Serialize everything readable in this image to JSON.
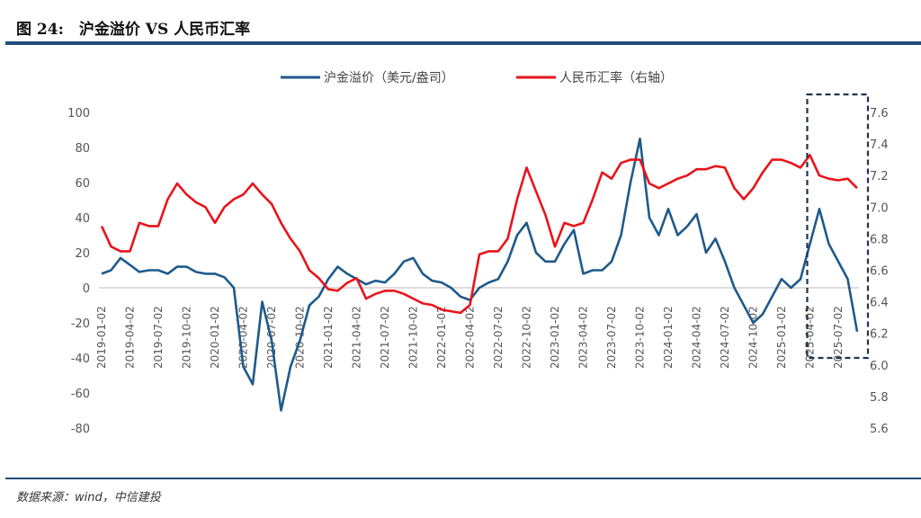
{
  "header": {
    "title": "图 24:　沪金溢价 VS 人民币汇率"
  },
  "footer": {
    "source": "数据来源：wind，中信建投"
  },
  "chart_data": {
    "type": "line",
    "title": "图 24:　沪金溢价 VS 人民币汇率",
    "legend_position": "top",
    "grid": "zero line only",
    "x_tick_labels": [
      "2019-01-02",
      "2019-04-02",
      "2019-07-02",
      "2019-10-02",
      "2020-01-02",
      "2020-04-02",
      "2020-07-02",
      "2020-10-02",
      "2021-01-02",
      "2021-04-02",
      "2021-07-02",
      "2021-10-02",
      "2022-01-02",
      "2022-04-02",
      "2022-07-02",
      "2022-10-02",
      "2023-01-02",
      "2023-04-02",
      "2023-07-02",
      "2023-10-02",
      "2024-01-02",
      "2024-04-02",
      "2024-07-02",
      "2024-10-02",
      "2025-01-02",
      "2025-04-02",
      "2025-07-02"
    ],
    "y_left": {
      "min": -80,
      "max": 100,
      "step": 20,
      "ticks": [
        "100",
        "80",
        "60",
        "40",
        "20",
        "0",
        "-20",
        "-40",
        "-60",
        "-80"
      ]
    },
    "y_right": {
      "min": 5.6,
      "max": 7.6,
      "step": 0.2,
      "ticks": [
        "7.6",
        "7.4",
        "7.2",
        "7.0",
        "6.8",
        "6.6",
        "6.4",
        "6.2",
        "6.0",
        "5.8",
        "5.6"
      ]
    },
    "x": [
      "2019-01",
      "2019-02",
      "2019-03",
      "2019-04",
      "2019-05",
      "2019-06",
      "2019-07",
      "2019-08",
      "2019-09",
      "2019-10",
      "2019-11",
      "2019-12",
      "2020-01",
      "2020-02",
      "2020-03",
      "2020-04",
      "2020-05",
      "2020-06",
      "2020-07",
      "2020-08",
      "2020-09",
      "2020-10",
      "2020-11",
      "2020-12",
      "2021-01",
      "2021-02",
      "2021-03",
      "2021-04",
      "2021-05",
      "2021-06",
      "2021-07",
      "2021-08",
      "2021-09",
      "2021-10",
      "2021-11",
      "2021-12",
      "2022-01",
      "2022-02",
      "2022-03",
      "2022-04",
      "2022-05",
      "2022-06",
      "2022-07",
      "2022-08",
      "2022-09",
      "2022-10",
      "2022-11",
      "2022-12",
      "2023-01",
      "2023-02",
      "2023-03",
      "2023-04",
      "2023-05",
      "2023-06",
      "2023-07",
      "2023-08",
      "2023-09",
      "2023-10",
      "2023-11",
      "2023-12",
      "2024-01",
      "2024-02",
      "2024-03",
      "2024-04",
      "2024-05",
      "2024-06",
      "2024-07",
      "2024-08",
      "2024-09",
      "2024-10",
      "2024-11",
      "2024-12",
      "2025-01",
      "2025-02",
      "2025-03",
      "2025-04",
      "2025-05",
      "2025-06",
      "2025-07",
      "2025-08",
      "2025-09"
    ],
    "series": [
      {
        "name": "沪金溢价（美元/盎司）",
        "axis": "left",
        "color": "#1f5a8a",
        "values": [
          8,
          10,
          17,
          13,
          9,
          10,
          10,
          8,
          12,
          12,
          9,
          8,
          8,
          6,
          0,
          -45,
          -55,
          -8,
          -30,
          -70,
          -45,
          -30,
          -10,
          -5,
          5,
          12,
          8,
          5,
          2,
          4,
          3,
          8,
          15,
          17,
          8,
          4,
          3,
          0,
          -5,
          -7,
          0,
          3,
          5,
          15,
          30,
          37,
          20,
          15,
          15,
          25,
          33,
          8,
          10,
          10,
          15,
          30,
          60,
          85,
          40,
          30,
          45,
          30,
          35,
          42,
          20,
          28,
          15,
          0,
          -10,
          -20,
          -15,
          -5,
          5,
          0,
          5,
          25,
          45,
          25,
          15,
          5,
          -25
        ]
      },
      {
        "name": "人民币汇率（右轴）",
        "axis": "right",
        "color": "#e8141b",
        "values": [
          6.88,
          6.75,
          6.72,
          6.72,
          6.9,
          6.88,
          6.88,
          7.05,
          7.15,
          7.08,
          7.03,
          7.0,
          6.9,
          7.0,
          7.05,
          7.08,
          7.15,
          7.08,
          7.02,
          6.9,
          6.8,
          6.72,
          6.6,
          6.55,
          6.48,
          6.47,
          6.52,
          6.55,
          6.42,
          6.45,
          6.47,
          6.47,
          6.45,
          6.42,
          6.39,
          6.38,
          6.35,
          6.34,
          6.33,
          6.38,
          6.7,
          6.72,
          6.72,
          6.8,
          7.05,
          7.25,
          7.1,
          6.95,
          6.75,
          6.9,
          6.88,
          6.9,
          7.05,
          7.22,
          7.18,
          7.28,
          7.3,
          7.3,
          7.15,
          7.12,
          7.15,
          7.18,
          7.2,
          7.24,
          7.24,
          7.26,
          7.25,
          7.12,
          7.05,
          7.12,
          7.22,
          7.3,
          7.3,
          7.28,
          7.25,
          7.33,
          7.2,
          7.18,
          7.17,
          7.18,
          7.12
        ]
      }
    ],
    "highlight_range": [
      "2025-04",
      "2025-09"
    ]
  }
}
